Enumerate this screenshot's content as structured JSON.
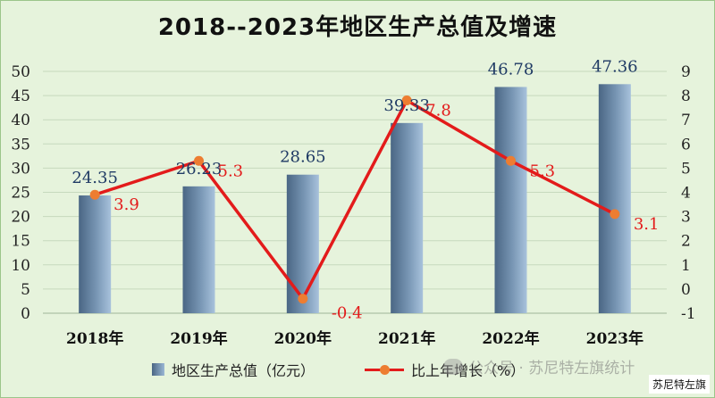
{
  "chart_data": {
    "type": "bar",
    "title": "2018--2023年地区生产总值及增速",
    "categories": [
      "2018年",
      "2019年",
      "2020年",
      "2021年",
      "2022年",
      "2023年"
    ],
    "series": [
      {
        "name": "地区生产总值（亿元）",
        "type": "bar",
        "axis": "left",
        "values": [
          24.35,
          26.23,
          28.65,
          39.33,
          46.78,
          47.36
        ],
        "labels": [
          "24.35",
          "26.23",
          "28.65",
          "39.33",
          "46.78",
          "47.36"
        ]
      },
      {
        "name": "比上年增长（%）",
        "type": "line",
        "axis": "right",
        "values": [
          3.9,
          5.3,
          -0.4,
          7.8,
          5.3,
          3.1
        ],
        "labels": [
          "3.9",
          "5.3",
          "-0.4",
          "7.8",
          "5.3",
          "3.1"
        ]
      }
    ],
    "y_left": {
      "ylim": [
        0,
        50
      ],
      "ticks": [
        "0",
        "5",
        "10",
        "15",
        "20",
        "25",
        "30",
        "35",
        "40",
        "45",
        "50"
      ]
    },
    "y_right": {
      "ylim": [
        -1,
        9
      ],
      "ticks": [
        "-1",
        "0",
        "1",
        "2",
        "3",
        "4",
        "5",
        "6",
        "7",
        "8",
        "9"
      ]
    },
    "grid": true,
    "legend_position": "bottom",
    "colors": {
      "bar": "#6f8fae",
      "line": "#e31b1b",
      "marker": "#ed7d31",
      "bar_label": "#1f3a64",
      "line_label": "#e31b1b",
      "background": "#e6f3dc"
    }
  },
  "legend": {
    "bar_label": "地区生产总值（亿元）",
    "line_label": "比上年增长（%）"
  },
  "watermark": "公众号 · 苏尼特左旗统计",
  "badge": "苏尼特左旗"
}
